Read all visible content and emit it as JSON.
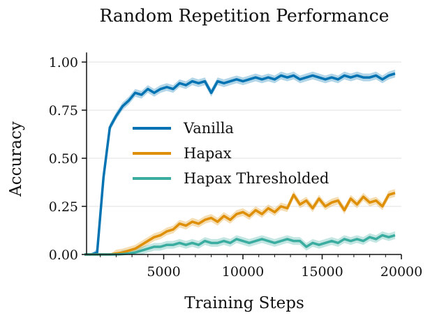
{
  "chart_data": {
    "type": "line",
    "title": "Random Repetition Performance",
    "xlabel": "Training Steps",
    "ylabel": "Accuracy",
    "xlim": [
      0,
      20000
    ],
    "ylim": [
      0,
      1.05
    ],
    "xticks": [
      5000,
      10000,
      15000,
      20000
    ],
    "xtick_labels": [
      "5000",
      "10000",
      "15000",
      "20000"
    ],
    "yticks": [
      0,
      0.25,
      0.5,
      0.75,
      1.0
    ],
    "ytick_labels": [
      "0.00",
      "0.25",
      "0.50",
      "0.75",
      "1.00"
    ],
    "grid": "horizontal",
    "legend_position": "center",
    "x": [
      0,
      400,
      800,
      1200,
      1600,
      2000,
      2400,
      2800,
      3200,
      3600,
      4000,
      4400,
      4800,
      5200,
      5600,
      6000,
      6400,
      6800,
      7200,
      7600,
      8000,
      8400,
      8800,
      9200,
      9600,
      10000,
      10400,
      10800,
      11200,
      11600,
      12000,
      12400,
      12800,
      13200,
      13600,
      14000,
      14400,
      14800,
      15200,
      15600,
      16000,
      16400,
      16800,
      17200,
      17600,
      18000,
      18400,
      18800,
      19200,
      19600
    ],
    "series": [
      {
        "name": "Vanilla",
        "color": "#0173b2",
        "values": [
          0,
          0,
          0.01,
          0.4,
          0.66,
          0.72,
          0.77,
          0.8,
          0.84,
          0.83,
          0.86,
          0.84,
          0.86,
          0.87,
          0.86,
          0.89,
          0.88,
          0.9,
          0.89,
          0.9,
          0.84,
          0.9,
          0.89,
          0.9,
          0.91,
          0.9,
          0.91,
          0.92,
          0.91,
          0.92,
          0.91,
          0.93,
          0.92,
          0.93,
          0.91,
          0.92,
          0.93,
          0.92,
          0.91,
          0.92,
          0.91,
          0.93,
          0.92,
          0.93,
          0.92,
          0.92,
          0.93,
          0.91,
          0.93,
          0.94
        ]
      },
      {
        "name": "Hapax",
        "color": "#de8f05",
        "values": [
          0,
          0,
          0,
          0,
          0,
          0.005,
          0.01,
          0.02,
          0.03,
          0.05,
          0.07,
          0.09,
          0.1,
          0.12,
          0.13,
          0.16,
          0.15,
          0.17,
          0.16,
          0.18,
          0.19,
          0.17,
          0.2,
          0.18,
          0.21,
          0.22,
          0.2,
          0.23,
          0.21,
          0.24,
          0.22,
          0.25,
          0.24,
          0.31,
          0.26,
          0.28,
          0.24,
          0.29,
          0.25,
          0.27,
          0.28,
          0.23,
          0.29,
          0.26,
          0.3,
          0.27,
          0.28,
          0.25,
          0.31,
          0.32
        ]
      },
      {
        "name": "Hapax Thresholded",
        "color": "#3aada0",
        "values": [
          0,
          0,
          0,
          0,
          0,
          0,
          0.002,
          0.005,
          0.01,
          0.02,
          0.03,
          0.04,
          0.04,
          0.05,
          0.05,
          0.06,
          0.05,
          0.06,
          0.05,
          0.07,
          0.06,
          0.06,
          0.07,
          0.06,
          0.08,
          0.07,
          0.06,
          0.07,
          0.08,
          0.07,
          0.06,
          0.07,
          0.08,
          0.07,
          0.07,
          0.04,
          0.06,
          0.05,
          0.06,
          0.07,
          0.06,
          0.08,
          0.07,
          0.08,
          0.07,
          0.09,
          0.08,
          0.1,
          0.09,
          0.1
        ]
      }
    ]
  }
}
